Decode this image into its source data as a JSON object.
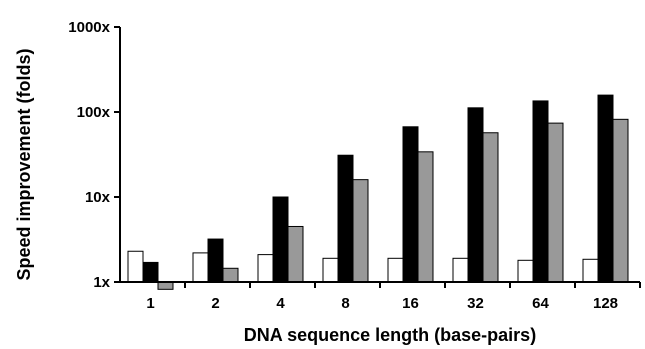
{
  "chart_data": {
    "type": "bar",
    "title": "",
    "xlabel": "DNA sequence length (base-pairs)",
    "ylabel": "Speed improvement (folds)",
    "y_scale": "log",
    "ylim": [
      1,
      1000
    ],
    "y_ticks": [
      "1x",
      "10x",
      "100x",
      "1000x"
    ],
    "categories": [
      "1",
      "2",
      "4",
      "8",
      "16",
      "32",
      "64",
      "128"
    ],
    "series": [
      {
        "color": "#ffffff",
        "values": [
          2.3,
          2.2,
          2.1,
          1.9,
          1.9,
          1.9,
          1.8,
          1.85
        ]
      },
      {
        "color": "#000000",
        "values": [
          1.7,
          3.2,
          10,
          31,
          67,
          112,
          135,
          158
        ]
      },
      {
        "color": "#999999",
        "values": [
          0.82,
          1.45,
          4.5,
          16,
          34,
          57,
          74,
          82
        ]
      }
    ],
    "grid": false,
    "legend": "none"
  }
}
